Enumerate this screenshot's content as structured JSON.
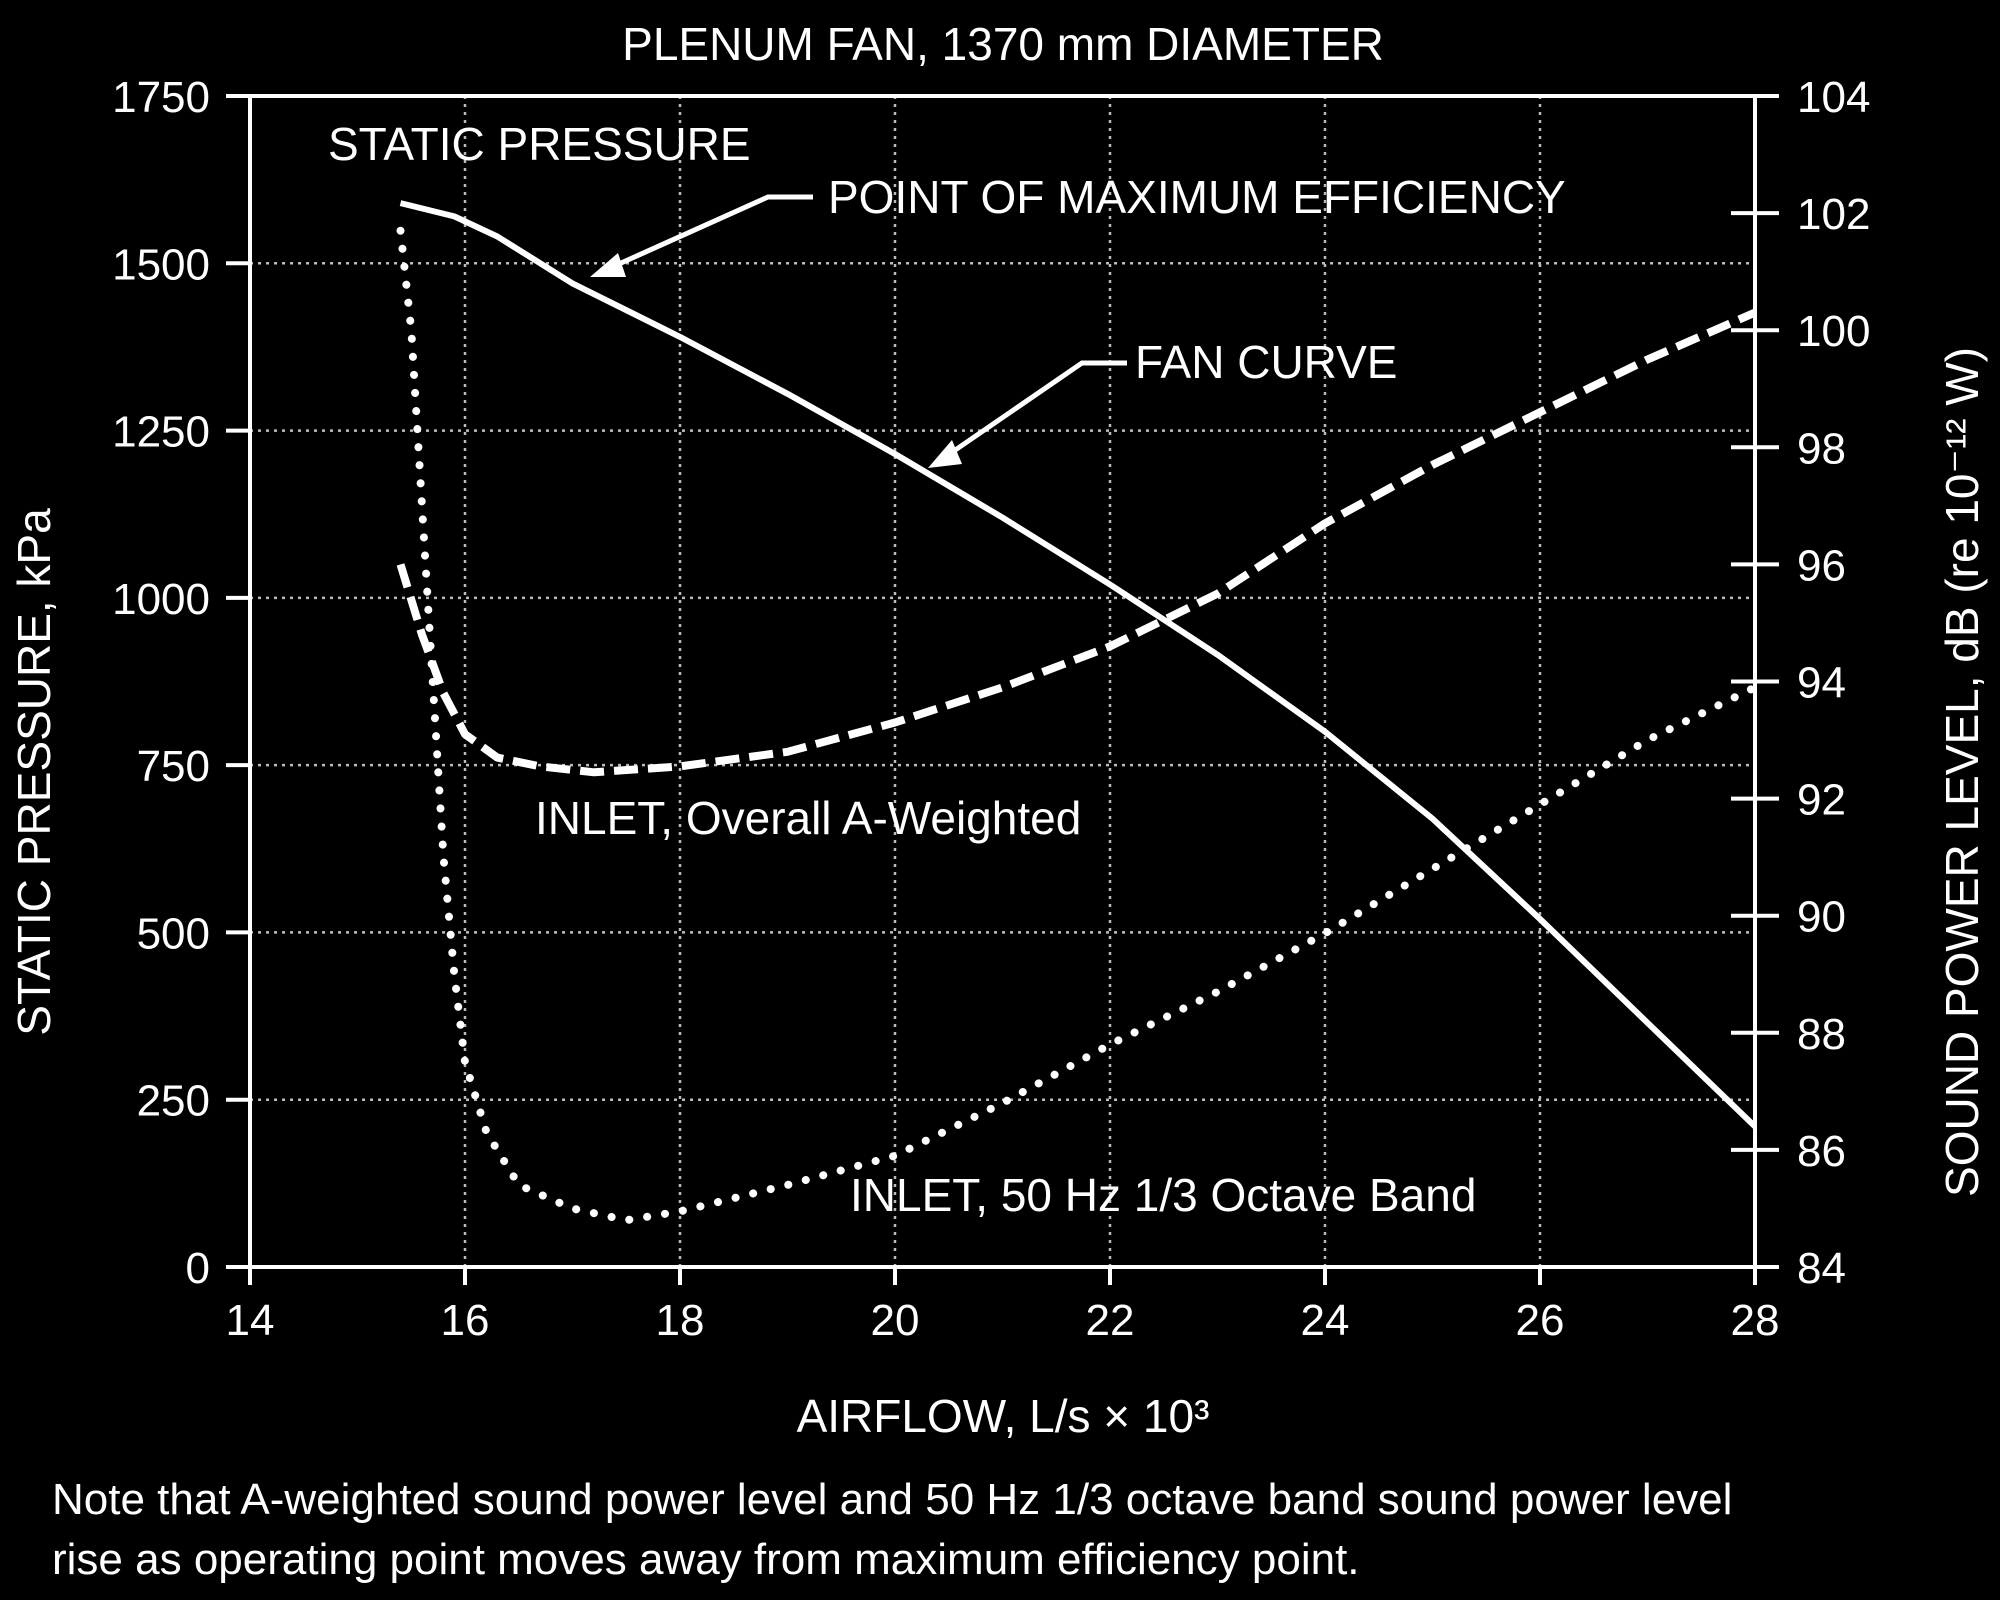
{
  "chart_data": {
    "type": "line",
    "title": "PLENUM FAN, 1370 mm DIAMETER",
    "xlabel": "AIRFLOW, L/s × 10³",
    "ylabel": "STATIC PRESSURE, kPa",
    "y2label": "SOUND POWER LEVEL, dB (re 10⁻¹² W)",
    "xlim": [
      14,
      28
    ],
    "ylim": [
      0,
      1750
    ],
    "y2lim": [
      84,
      104
    ],
    "x_ticks": [
      14,
      16,
      18,
      20,
      22,
      24,
      26,
      28
    ],
    "y_ticks": [
      0,
      250,
      500,
      750,
      1000,
      1250,
      1500,
      1750
    ],
    "y2_ticks": [
      84,
      86,
      88,
      90,
      92,
      94,
      96,
      98,
      100,
      102,
      104
    ],
    "grid": true,
    "annotations": {
      "static_pressure": "STATIC PRESSURE",
      "max_efficiency": "POINT OF MAXIMUM EFFICIENCY",
      "fan_curve": "FAN CURVE",
      "inlet_a_weighted": "INLET, Overall A-Weighted",
      "inlet_50hz": "INLET, 50 Hz 1/3 Octave Band"
    },
    "series": [
      {
        "axis": "left",
        "style": "solid",
        "x": [
          15.4,
          15.9,
          16.3,
          17.0,
          18.0,
          19.0,
          20.0,
          21.0,
          22.0,
          23.0,
          24.0,
          25.0,
          26.0,
          27.0,
          28.0
        ],
        "y": [
          1590,
          1570,
          1540,
          1470,
          1390,
          1305,
          1215,
          1120,
          1020,
          915,
          800,
          670,
          520,
          365,
          210
        ]
      },
      {
        "axis": "right",
        "style": "dashed",
        "x": [
          15.4,
          15.6,
          15.8,
          16.0,
          16.3,
          16.7,
          17.2,
          18.0,
          19.0,
          20.0,
          21.0,
          22.0,
          23.0,
          24.0,
          25.0,
          26.0,
          27.0,
          28.0
        ],
        "y": [
          96.0,
          94.8,
          93.8,
          93.1,
          92.7,
          92.55,
          92.45,
          92.55,
          92.8,
          93.3,
          93.9,
          94.6,
          95.5,
          96.7,
          97.7,
          98.6,
          99.5,
          100.3
        ]
      },
      {
        "axis": "right",
        "style": "dotted",
        "x": [
          15.4,
          15.5,
          15.6,
          15.7,
          15.8,
          15.9,
          16.0,
          16.2,
          16.5,
          17.0,
          17.5,
          18.0,
          19.0,
          20.0,
          21.0,
          22.0,
          23.0,
          24.0,
          25.0,
          26.0,
          27.0,
          28.0
        ],
        "y": [
          101.7,
          100.0,
          97.0,
          94.0,
          91.0,
          89.0,
          87.5,
          86.3,
          85.4,
          85.0,
          84.8,
          84.95,
          85.4,
          85.9,
          86.8,
          87.8,
          88.7,
          89.7,
          90.8,
          91.9,
          93.0,
          93.9
        ]
      }
    ]
  },
  "note": {
    "line1": "Note that A-weighted sound power level and 50 Hz 1/3 octave band sound power level",
    "line2": "rise as operating point moves away from maximum efficiency point."
  }
}
